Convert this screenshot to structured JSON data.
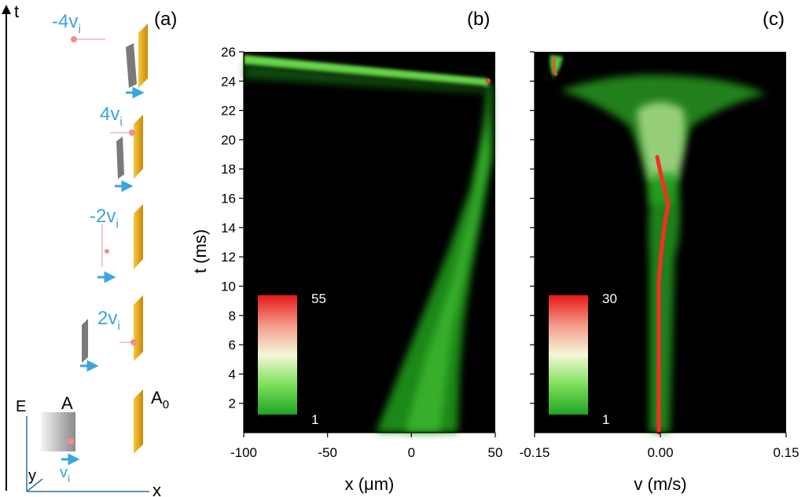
{
  "panels": {
    "a": {
      "label": "(a)",
      "t_axis_label": "t",
      "x_axis_label": "x",
      "y_axis_label": "y",
      "e_axis_label": "E",
      "atom_label": "A",
      "mirror_label_base": "A",
      "mirror_label_sub": "0",
      "velocity_base": "v",
      "velocity_sub": "i",
      "steps": [
        {
          "coef": "-4"
        },
        {
          "coef": "4"
        },
        {
          "coef": "-2"
        },
        {
          "coef": "2"
        }
      ],
      "colors": {
        "velocity_text": "#3aa6dd",
        "arrow": "#3aa6dd",
        "mirror": "#e8b016",
        "atom": "#ef8f8f"
      }
    },
    "b": {
      "label": "(b)"
    },
    "c": {
      "label": "(c)"
    }
  },
  "chart_data": [
    {
      "type": "heatmap",
      "panel": "(b)",
      "xlabel": "x (μm)",
      "ylabel": "t (ms)",
      "xlim": [
        -100,
        50
      ],
      "ylim": [
        0,
        26
      ],
      "x_ticks": [
        -100,
        -50,
        0,
        50
      ],
      "x_tick_labels": [
        "-100",
        "-50",
        "0",
        "50"
      ],
      "y_ticks": [
        2,
        4,
        6,
        8,
        10,
        12,
        14,
        16,
        18,
        20,
        22,
        24,
        26
      ],
      "y_tick_labels": [
        "2",
        "4",
        "6",
        "8",
        "10",
        "12",
        "14",
        "16",
        "18",
        "20",
        "22",
        "24",
        "26"
      ],
      "colorbar": {
        "min": 1,
        "max": 55,
        "min_label": "1",
        "max_label": "55"
      },
      "features": [
        {
          "name": "expanding cloud",
          "points": [
            [
              0,
              0
            ],
            [
              20,
              8
            ],
            [
              33,
              14
            ],
            [
              42,
              20
            ],
            [
              45,
              24
            ]
          ]
        },
        {
          "name": "reflected cloud",
          "points": [
            [
              45,
              24.2
            ],
            [
              -100,
              26
            ]
          ]
        }
      ]
    },
    {
      "type": "heatmap",
      "panel": "(c)",
      "xlabel": "v (m/s)",
      "ylabel": "",
      "xlim": [
        -0.15,
        0.15
      ],
      "ylim": [
        0,
        26
      ],
      "x_ticks": [
        -0.15,
        0,
        0.15
      ],
      "x_tick_labels": [
        "-0.15",
        "0.00",
        "0.15"
      ],
      "y_ticks": [
        2,
        4,
        6,
        8,
        10,
        12,
        14,
        16,
        18,
        20,
        22,
        24,
        26
      ],
      "colorbar": {
        "min": 1,
        "max": 30,
        "min_label": "1",
        "max_label": "30"
      },
      "features": [
        {
          "name": "central velocity peak",
          "points": [
            [
              0.0,
              0
            ],
            [
              0.0,
              10
            ],
            [
              0.01,
              16
            ],
            [
              0.0,
              19
            ]
          ]
        },
        {
          "name": "velocity fan",
          "points": [
            [
              -0.1,
              23.5
            ],
            [
              0.0,
              22
            ],
            [
              0.11,
              23.5
            ]
          ]
        },
        {
          "name": "reflected velocity",
          "points": [
            [
              -0.12,
              24
            ],
            [
              -0.12,
              26
            ]
          ]
        }
      ]
    }
  ]
}
